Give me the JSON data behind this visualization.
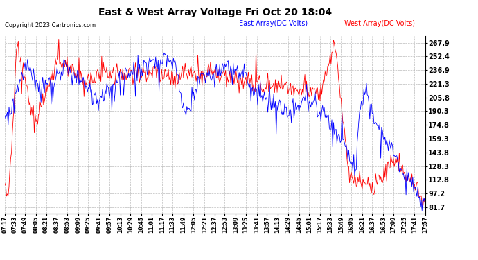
{
  "title": "East & West Array Voltage Fri Oct 20 18:04",
  "copyright": "Copyright 2023 Cartronics.com",
  "legend_east": "East Array(DC Volts)",
  "legend_west": "West Array(DC Volts)",
  "east_color": "#0000ff",
  "west_color": "#ff0000",
  "background_color": "#ffffff",
  "grid_color": "#bbbbbb",
  "yticks": [
    81.7,
    97.2,
    112.8,
    128.3,
    143.8,
    159.3,
    174.8,
    190.3,
    205.8,
    221.3,
    236.9,
    252.4,
    267.9
  ],
  "ymin": 75.0,
  "ymax": 275.0,
  "time_labels": [
    "07:17",
    "07:33",
    "07:49",
    "08:05",
    "08:21",
    "08:37",
    "08:53",
    "09:09",
    "09:25",
    "09:41",
    "09:57",
    "10:13",
    "10:29",
    "10:45",
    "11:01",
    "11:17",
    "11:33",
    "11:49",
    "12:05",
    "12:21",
    "12:37",
    "12:53",
    "13:09",
    "13:25",
    "13:41",
    "13:57",
    "14:13",
    "14:29",
    "14:45",
    "15:01",
    "15:17",
    "15:33",
    "15:49",
    "16:05",
    "16:21",
    "16:37",
    "16:53",
    "17:09",
    "17:25",
    "17:41",
    "17:57"
  ]
}
